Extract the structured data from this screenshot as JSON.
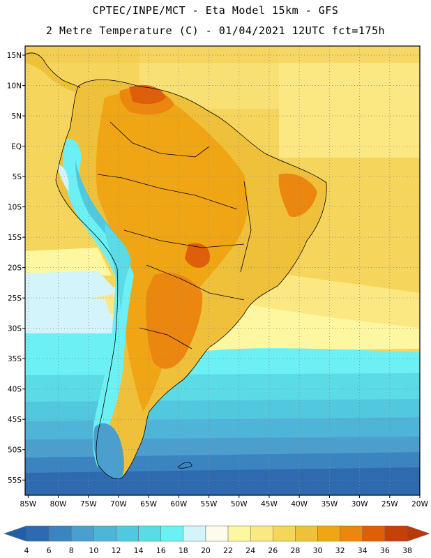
{
  "header": {
    "line1": "CPTEC/INPE/MCT -  Eta Model 15km - GFS",
    "line2": "2 Metre Temperature (C) - 01/04/2021 12UTC fct=175h"
  },
  "map": {
    "lat_ticks": [
      "15N",
      "10N",
      "5N",
      "EQ",
      "5S",
      "10S",
      "15S",
      "20S",
      "25S",
      "30S",
      "35S",
      "40S",
      "45S",
      "50S",
      "55S"
    ],
    "lon_ticks": [
      "85W",
      "80W",
      "75W",
      "70W",
      "65W",
      "60W",
      "55W",
      "50W",
      "45W",
      "40W",
      "35W",
      "30W",
      "25W",
      "20W"
    ],
    "lat_values": [
      15,
      10,
      5,
      0,
      -5,
      -10,
      -15,
      -20,
      -25,
      -30,
      -35,
      -40,
      -45,
      -50,
      -55
    ],
    "lon_values": [
      -85,
      -80,
      -75,
      -70,
      -65,
      -60,
      -55,
      -50,
      -45,
      -40,
      -35,
      -30,
      -25,
      -20
    ],
    "extent": {
      "west": -85.5,
      "east": -20,
      "north": 16.5,
      "south": -57.5
    }
  },
  "colorbar": {
    "labels": [
      "4",
      "6",
      "8",
      "10",
      "12",
      "14",
      "16",
      "18",
      "20",
      "22",
      "24",
      "26",
      "28",
      "30",
      "32",
      "34",
      "36",
      "38"
    ],
    "colors": [
      "#2e6ab0",
      "#3b84c0",
      "#4b9fcf",
      "#4fb5d8",
      "#52c8df",
      "#5adbe6",
      "#6cf0f4",
      "#d2f4fa",
      "#fefbea",
      "#fef7a2",
      "#fce883",
      "#f6d55c",
      "#efc13b",
      "#f0a515",
      "#eb860f",
      "#de5e0a",
      "#c4410a"
    ],
    "low_color": "#2160a8",
    "high_color": "#b8390a"
  }
}
